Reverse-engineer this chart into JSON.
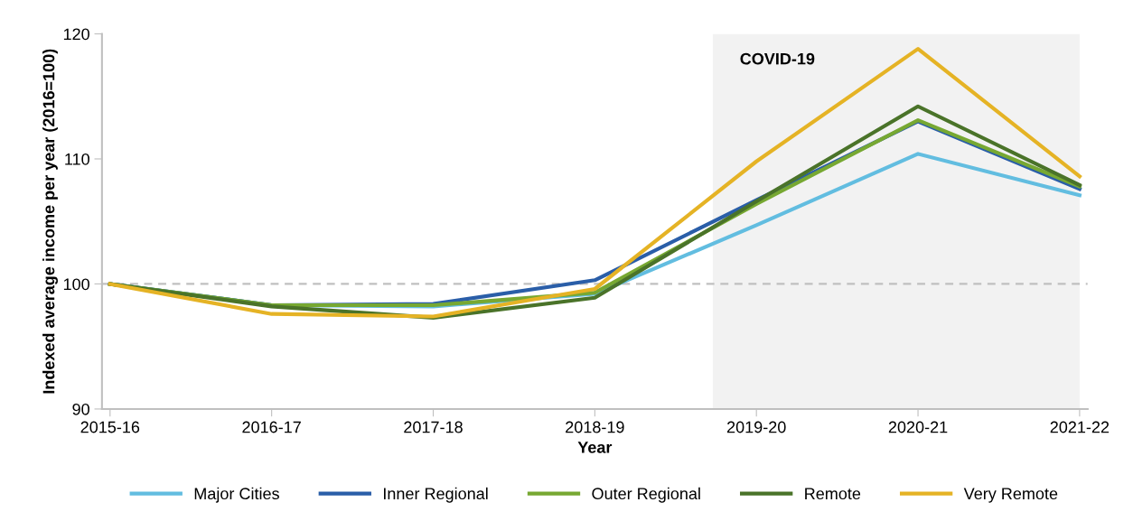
{
  "chart_data": {
    "type": "line",
    "xlabel": "Year",
    "ylabel": "Indexed average income per year (2016=100)",
    "categories": [
      "2015-16",
      "2016-17",
      "2017-18",
      "2018-19",
      "2019-20",
      "2020-21",
      "2021-22"
    ],
    "series": [
      {
        "name": "Major Cities",
        "color": "#62bde0",
        "values": [
          100,
          98.3,
          98.2,
          99.2,
          104.7,
          110.4,
          107.1
        ]
      },
      {
        "name": "Inner Regional",
        "color": "#2a5ea8",
        "values": [
          100,
          98.3,
          98.4,
          100.3,
          106.7,
          113.0,
          107.6
        ]
      },
      {
        "name": "Outer Regional",
        "color": "#77a832",
        "values": [
          100,
          98.3,
          98.3,
          99.3,
          106.4,
          113.1,
          107.8
        ]
      },
      {
        "name": "Remote",
        "color": "#4a7329",
        "values": [
          100,
          98.2,
          97.3,
          98.9,
          106.6,
          114.2,
          107.9
        ]
      },
      {
        "name": "Very Remote",
        "color": "#e5b325",
        "values": [
          100,
          97.6,
          97.4,
          99.6,
          109.8,
          118.8,
          108.6
        ]
      }
    ],
    "ylim": [
      90,
      120
    ],
    "yticks": [
      90,
      100,
      110,
      120
    ],
    "ref_lines": [
      {
        "axis": "y",
        "value": 100,
        "color": "#c0c0c0",
        "line_style": "dashed"
      }
    ],
    "annotations": [
      "COVID-19"
    ],
    "grid": false,
    "legend": "bottom",
    "marker": "none",
    "line_style": "solid"
  }
}
